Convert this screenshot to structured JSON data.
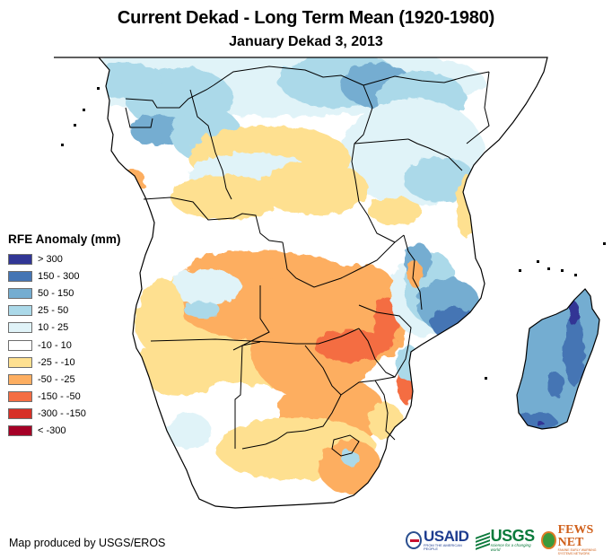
{
  "header": {
    "title": "Current Dekad - Long Term Mean (1920-1980)",
    "subtitle": "January Dekad 3, 2013"
  },
  "legend": {
    "title": "RFE Anomaly (mm)",
    "classes": [
      {
        "label": "> 300",
        "color": "#313695"
      },
      {
        "label": "150 - 300",
        "color": "#4575b4"
      },
      {
        "label": "50 - 150",
        "color": "#74add1"
      },
      {
        "label": "25 - 50",
        "color": "#abd9e9"
      },
      {
        "label": "10 - 25",
        "color": "#e0f3f8"
      },
      {
        "label": "-10 - 10",
        "color": "#ffffff"
      },
      {
        "label": "-25 - -10",
        "color": "#fee090"
      },
      {
        "label": "-50 - -25",
        "color": "#fdae61"
      },
      {
        "label": "-150 - -50",
        "color": "#f46d43"
      },
      {
        "label": "-300 - -150",
        "color": "#d73027"
      },
      {
        "label": "< -300",
        "color": "#a50026"
      }
    ]
  },
  "map": {
    "region": "Southern and Central Africa",
    "border_color": "#000000",
    "ocean_color": "#ffffff"
  },
  "footer": {
    "credit": "Map produced by USGS/EROS",
    "logos": {
      "usaid": {
        "name": "USAID",
        "tagline": "FROM THE AMERICAN PEOPLE"
      },
      "usgs": {
        "name": "USGS",
        "tagline": "science for a changing world"
      },
      "fewsnet": {
        "name": "FEWS NET",
        "tagline": "FAMINE EARLY WARNING SYSTEMS NETWORK"
      }
    }
  }
}
